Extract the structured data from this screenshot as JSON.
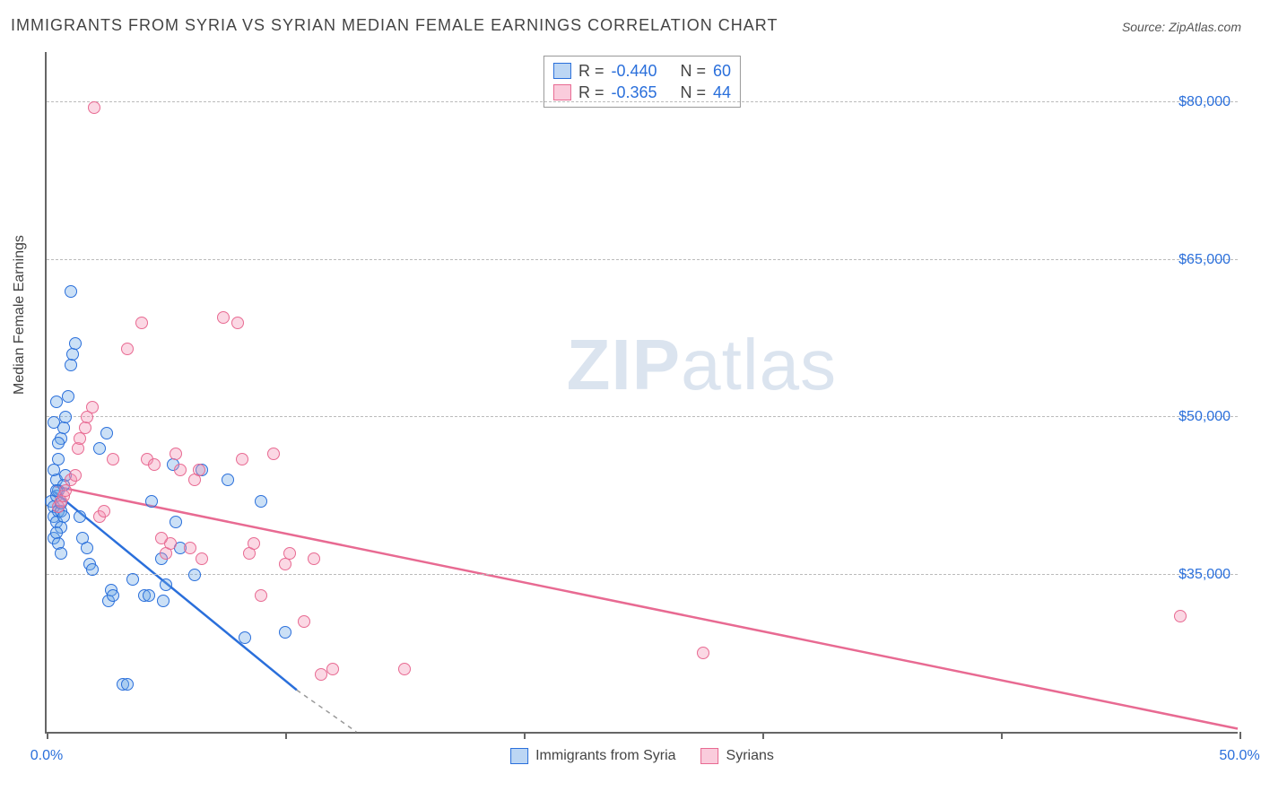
{
  "title": "IMMIGRANTS FROM SYRIA VS SYRIAN MEDIAN FEMALE EARNINGS CORRELATION CHART",
  "source": "Source: ZipAtlas.com",
  "watermark": {
    "zip": "ZIP",
    "atlas": "atlas"
  },
  "chart": {
    "type": "scatter",
    "background_color": "#ffffff",
    "grid_color": "#bbbbbb",
    "axis_color": "#666666",
    "y_axis_title": "Median Female Earnings",
    "xlim": [
      0,
      50
    ],
    "ylim": [
      20000,
      85000
    ],
    "x_ticks": [
      0,
      10,
      20,
      30,
      40,
      50
    ],
    "x_tick_labels": {
      "0": "0.0%",
      "50": "50.0%"
    },
    "y_gridlines": [
      35000,
      50000,
      65000,
      80000
    ],
    "y_tick_labels": {
      "35000": "$35,000",
      "50000": "$50,000",
      "65000": "$65,000",
      "80000": "$80,000"
    },
    "marker_radius": 7,
    "series": [
      {
        "name": "Immigrants from Syria",
        "color_fill": "rgba(106,165,230,0.35)",
        "color_stroke": "#2a6fdb",
        "R_label": "R =",
        "R": "-0.440",
        "N_label": "N =",
        "N": "60",
        "trend": {
          "x1": 0.3,
          "y1": 43000,
          "x2": 10.5,
          "y2": 24000,
          "dash_extend_x": 13.0,
          "dash_extend_y": 20000
        },
        "points": [
          [
            0.2,
            42000
          ],
          [
            0.3,
            41500
          ],
          [
            0.4,
            42500
          ],
          [
            0.3,
            40500
          ],
          [
            0.5,
            41000
          ],
          [
            0.4,
            40000
          ],
          [
            0.6,
            41000
          ],
          [
            0.5,
            43000
          ],
          [
            0.7,
            40500
          ],
          [
            0.6,
            39500
          ],
          [
            0.4,
            44000
          ],
          [
            0.5,
            46000
          ],
          [
            0.6,
            48000
          ],
          [
            0.7,
            49000
          ],
          [
            0.3,
            49500
          ],
          [
            0.8,
            50000
          ],
          [
            0.4,
            51500
          ],
          [
            0.9,
            52000
          ],
          [
            1.0,
            55000
          ],
          [
            1.1,
            56000
          ],
          [
            1.0,
            62000
          ],
          [
            1.2,
            57000
          ],
          [
            1.4,
            40500
          ],
          [
            1.5,
            38500
          ],
          [
            1.7,
            37500
          ],
          [
            1.8,
            36000
          ],
          [
            1.9,
            35500
          ],
          [
            2.2,
            47000
          ],
          [
            2.5,
            48500
          ],
          [
            2.6,
            32500
          ],
          [
            2.7,
            33500
          ],
          [
            2.8,
            33000
          ],
          [
            3.2,
            24500
          ],
          [
            3.4,
            24500
          ],
          [
            3.6,
            34500
          ],
          [
            4.1,
            33000
          ],
          [
            4.3,
            33000
          ],
          [
            4.4,
            42000
          ],
          [
            4.8,
            36500
          ],
          [
            4.9,
            32500
          ],
          [
            5.0,
            34000
          ],
          [
            5.3,
            45500
          ],
          [
            5.4,
            40000
          ],
          [
            5.6,
            37500
          ],
          [
            6.2,
            35000
          ],
          [
            6.5,
            45000
          ],
          [
            7.6,
            44000
          ],
          [
            8.3,
            29000
          ],
          [
            9.0,
            42000
          ],
          [
            10.0,
            29500
          ],
          [
            0.3,
            38500
          ],
          [
            0.4,
            39000
          ],
          [
            0.5,
            38000
          ],
          [
            0.6,
            37000
          ],
          [
            0.7,
            43500
          ],
          [
            0.8,
            44500
          ],
          [
            0.5,
            47500
          ],
          [
            0.3,
            45000
          ],
          [
            0.4,
            43000
          ],
          [
            0.6,
            41800
          ]
        ]
      },
      {
        "name": "Syrians",
        "color_fill": "rgba(244,143,177,0.35)",
        "color_stroke": "#e86a92",
        "R_label": "R =",
        "R": "-0.365",
        "N_label": "N =",
        "N": "44",
        "trend": {
          "x1": 0.3,
          "y1": 43500,
          "x2": 50.0,
          "y2": 20300
        },
        "points": [
          [
            0.5,
            41500
          ],
          [
            0.6,
            42000
          ],
          [
            0.7,
            42500
          ],
          [
            0.8,
            43000
          ],
          [
            1.0,
            44000
          ],
          [
            1.2,
            44500
          ],
          [
            1.3,
            47000
          ],
          [
            1.4,
            48000
          ],
          [
            1.6,
            49000
          ],
          [
            1.7,
            50000
          ],
          [
            1.9,
            51000
          ],
          [
            2.2,
            40500
          ],
          [
            2.4,
            41000
          ],
          [
            2.8,
            46000
          ],
          [
            2.0,
            79500
          ],
          [
            3.4,
            56500
          ],
          [
            4.0,
            59000
          ],
          [
            4.2,
            46000
          ],
          [
            4.5,
            45500
          ],
          [
            5.0,
            37000
          ],
          [
            5.2,
            38000
          ],
          [
            5.4,
            46500
          ],
          [
            5.6,
            45000
          ],
          [
            6.0,
            37500
          ],
          [
            6.2,
            44000
          ],
          [
            6.4,
            45000
          ],
          [
            6.5,
            36500
          ],
          [
            7.4,
            59500
          ],
          [
            8.0,
            59000
          ],
          [
            8.2,
            46000
          ],
          [
            8.5,
            37000
          ],
          [
            8.7,
            38000
          ],
          [
            9.0,
            33000
          ],
          [
            9.5,
            46500
          ],
          [
            10.0,
            36000
          ],
          [
            10.2,
            37000
          ],
          [
            10.8,
            30500
          ],
          [
            11.2,
            36500
          ],
          [
            11.5,
            25500
          ],
          [
            12.0,
            26000
          ],
          [
            15.0,
            26000
          ],
          [
            27.5,
            27500
          ],
          [
            47.5,
            31000
          ],
          [
            4.8,
            38500
          ]
        ]
      }
    ],
    "bottom_legend": [
      {
        "swatch": "blue",
        "label": "Immigrants from Syria"
      },
      {
        "swatch": "pink",
        "label": "Syrians"
      }
    ]
  }
}
